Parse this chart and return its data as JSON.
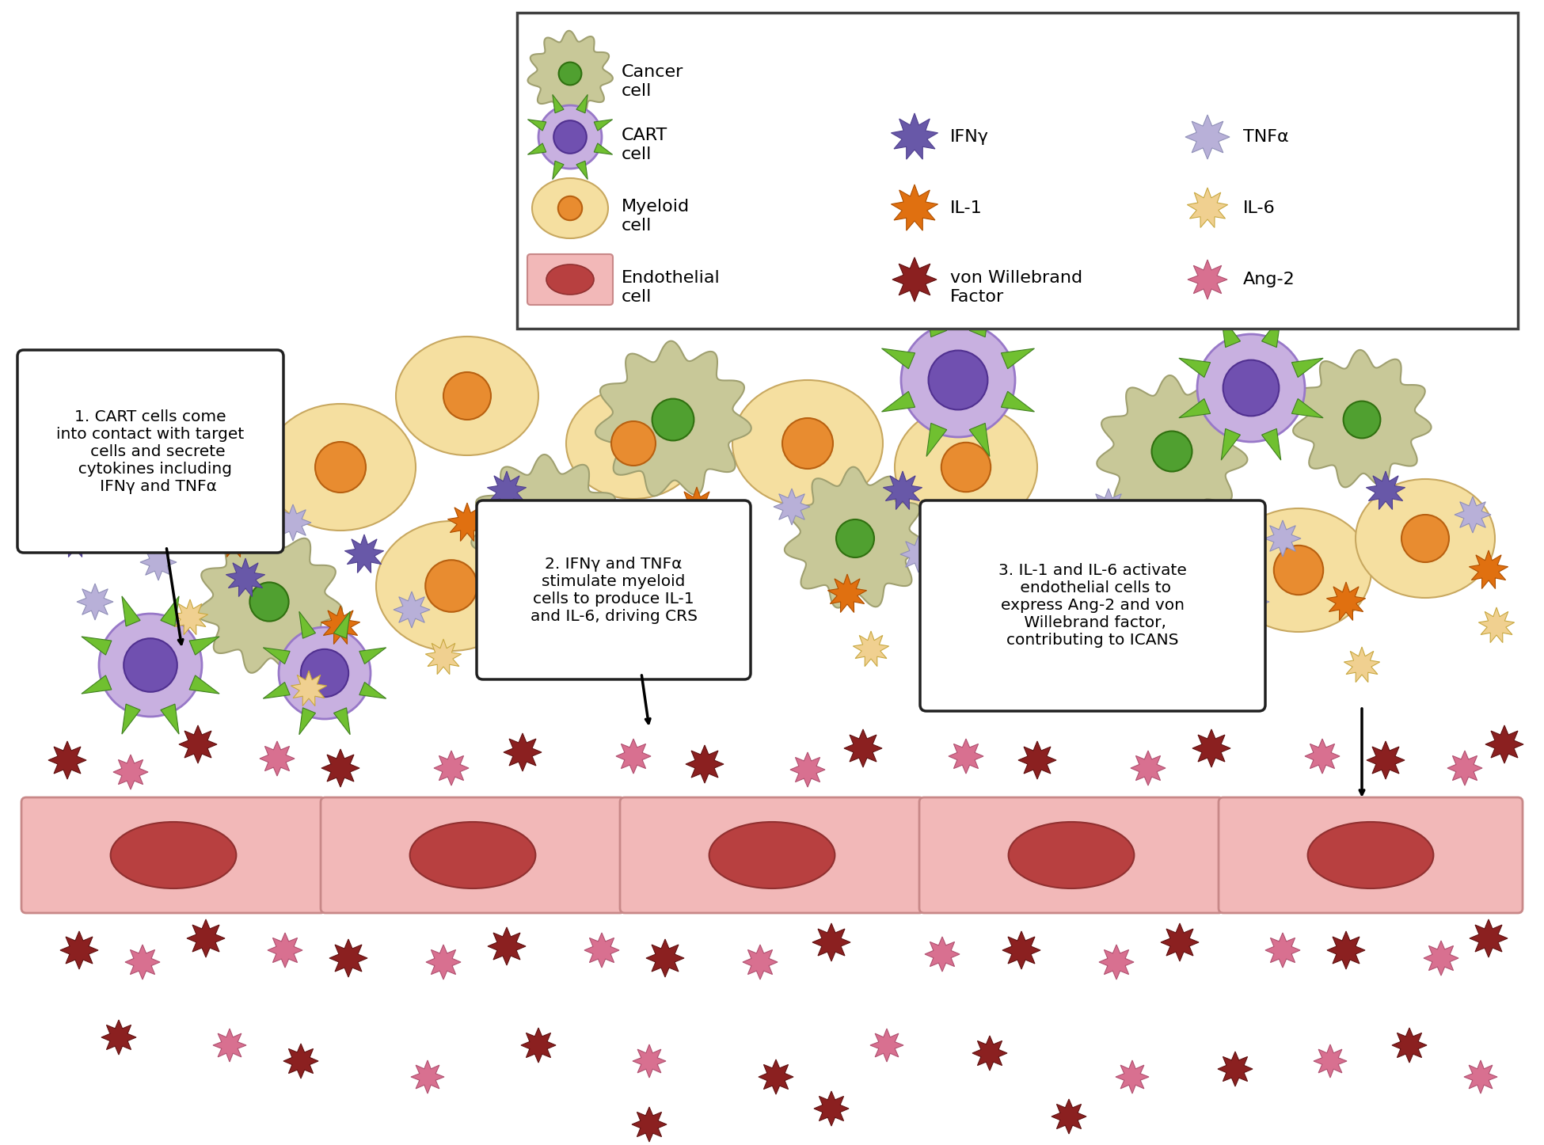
{
  "bg_color": "#ffffff",
  "endothelial_fill": "#f2b8b8",
  "endothelial_edge": "#c88888",
  "endothelial_nuc": "#b84040",
  "cancer_outer": "#c8c898",
  "cancer_outer_edge": "#a0a070",
  "cancer_nuc": "#50a030",
  "cancer_nuc_edge": "#307010",
  "cart_outer": "#c8b0e0",
  "cart_outer_edge": "#9878c8",
  "cart_nuc": "#7050b0",
  "cart_nuc_edge": "#503090",
  "cart_spike": "#70c030",
  "cart_spike_edge": "#408020",
  "myeloid_outer": "#f5dfa0",
  "myeloid_outer_edge": "#c8a860",
  "myeloid_nuc": "#e88c30",
  "myeloid_nuc_edge": "#b86010",
  "ifn_color": "#6858a8",
  "ifn_edge": "#504090",
  "tnf_color": "#b8b0d8",
  "tnf_edge": "#9090b8",
  "il1_color": "#e07010",
  "il1_edge": "#b05000",
  "il6_color": "#f0d090",
  "il6_edge": "#c8a840",
  "vwf_color": "#8b2020",
  "vwf_edge": "#601010",
  "ang2_color": "#d87090",
  "ang2_edge": "#b05070",
  "box1_text": "1. CART cells come\ninto contact with target\n   cells and secrete\n  cytokines including\n   IFNγ and TNFα",
  "box2_text": "2. IFNγ and TNFα\nstimulate myeloid\ncells to produce IL-1\nand IL-6, driving CRS",
  "box3_text": "3. IL-1 and IL-6 activate\n endothelial cells to\nexpress Ang-2 and von\n Willebrand factor,\ncontributing to ICANS"
}
